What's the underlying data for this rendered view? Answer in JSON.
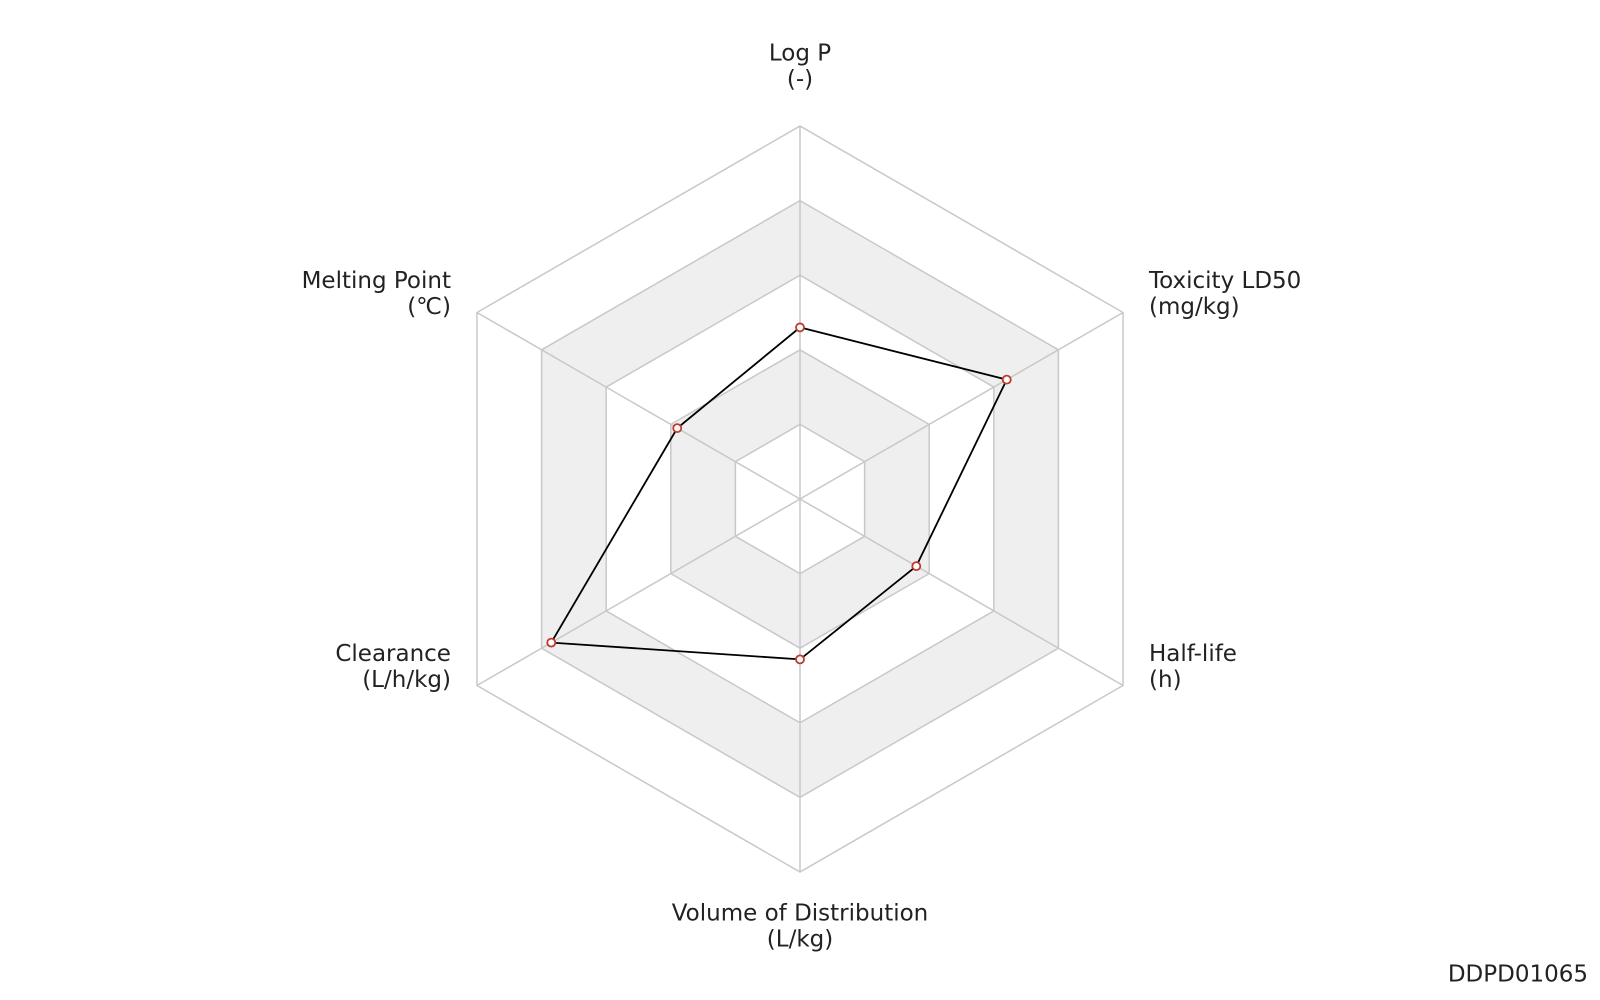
{
  "chart_data": {
    "type": "radar",
    "categories": [
      "Log P",
      "Toxicity LD50",
      "Half-life",
      "Volume of Distribution",
      "Clearance",
      "Melting Point"
    ],
    "category_units": [
      "(-)",
      "(mg/kg)",
      "(h)",
      "(L/kg)",
      "(L/h/kg)",
      "(℃)"
    ],
    "values": [
      0.46,
      0.64,
      0.36,
      0.43,
      0.77,
      0.38
    ],
    "color": "#000000",
    "marker_color": "#c0392b",
    "ylim": [
      0,
      1
    ],
    "yticks": [
      0.2,
      0.4,
      0.6,
      0.8,
      1
    ],
    "grid": true,
    "watermark": "DDPD01065"
  }
}
